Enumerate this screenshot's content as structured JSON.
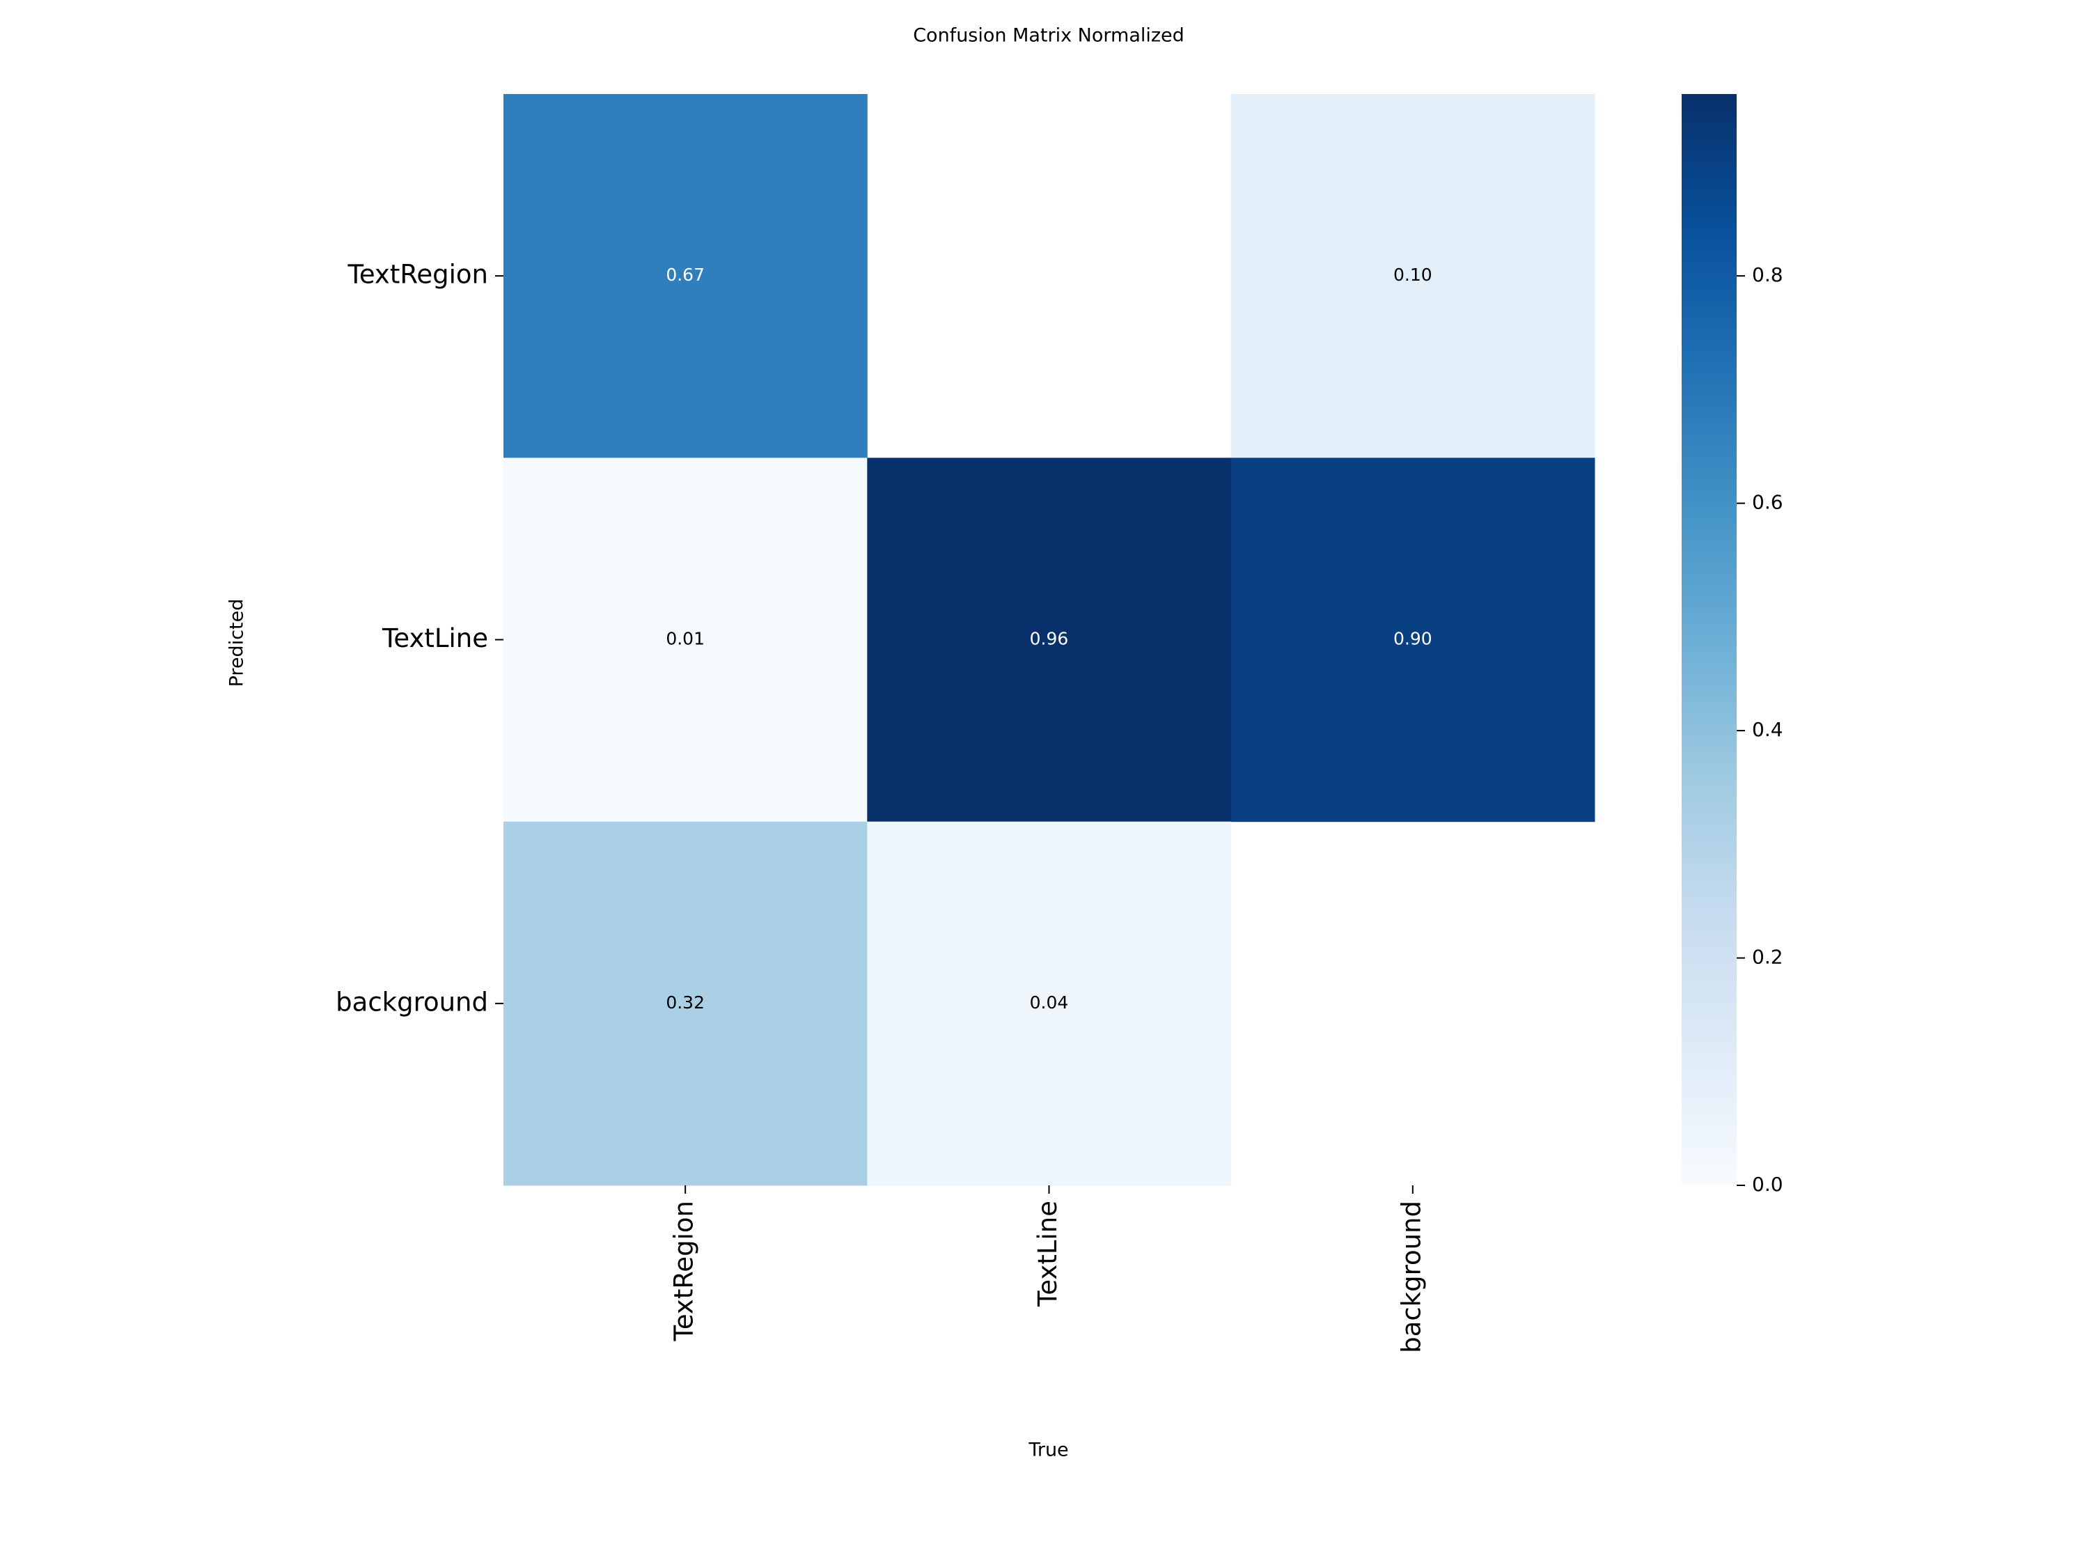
{
  "chart_data": {
    "type": "heatmap",
    "title": "Confusion Matrix Normalized",
    "x_label": "True",
    "y_label": "Predicted",
    "x_categories": [
      "TextRegion",
      "TextLine",
      "background"
    ],
    "y_categories": [
      "TextRegion",
      "TextLine",
      "background"
    ],
    "values": [
      [
        0.67,
        null,
        0.1
      ],
      [
        0.01,
        0.96,
        0.9
      ],
      [
        0.32,
        0.04,
        null
      ]
    ],
    "value_labels": [
      [
        "0.67",
        null,
        "0.10"
      ],
      [
        "0.01",
        "0.96",
        "0.90"
      ],
      [
        "0.32",
        "0.04",
        null
      ]
    ],
    "colormap": "Blues",
    "clim": [
      0,
      0.96
    ],
    "colorbar_ticks": [
      {
        "value": 0,
        "label": "0.0"
      },
      0.2,
      0.4,
      0.6,
      0.8
    ]
  }
}
